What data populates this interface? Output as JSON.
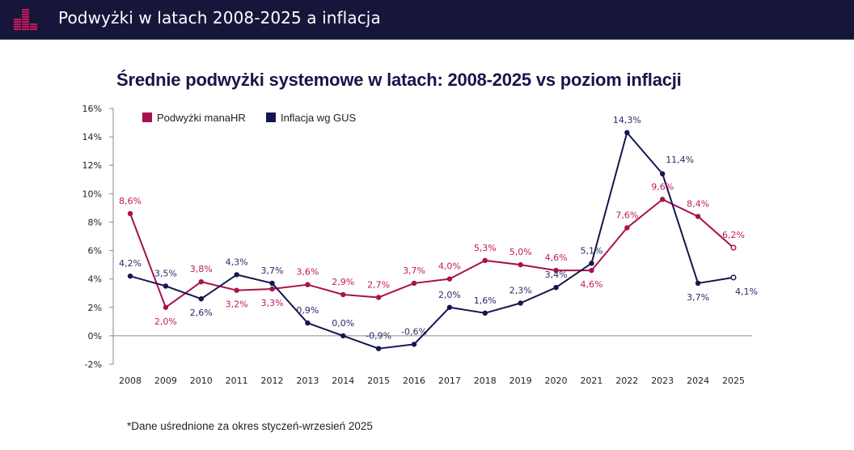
{
  "header": {
    "title": "Podwyżki w latach 2008-2025 a inflacja",
    "logo_icon": "bar-chart-logo-icon",
    "logo_color": "#c2185b",
    "background": "#16163a"
  },
  "footnote": "*Dane uśrednione za okres styczeń-wrzesień 2025",
  "chart_data": {
    "type": "line",
    "title": "Średnie podwyżki systemowe w latach: 2008-2025 vs poziom inflacji",
    "xlabel": "",
    "ylabel": "",
    "x": [
      "2008",
      "2009",
      "2010",
      "2011",
      "2012",
      "2013",
      "2014",
      "2015",
      "2016",
      "2017",
      "2018",
      "2019",
      "2020",
      "2021",
      "2022",
      "2023",
      "2024",
      "2025"
    ],
    "ylim": [
      -2,
      16
    ],
    "yticks": [
      -2,
      0,
      2,
      4,
      6,
      8,
      10,
      12,
      14,
      16
    ],
    "ytick_labels": [
      "-2%",
      "0%",
      "2%",
      "4%",
      "6%",
      "8%",
      "10%",
      "12%",
      "14%",
      "16%"
    ],
    "grid": false,
    "legend_position": "top-left",
    "series": [
      {
        "name": "Podwyżki manaHR",
        "color": "#a8114f",
        "label_color": "#c2185b",
        "values": [
          8.6,
          2.0,
          3.8,
          3.2,
          3.3,
          3.6,
          2.9,
          2.7,
          3.7,
          4.0,
          5.3,
          5.0,
          4.6,
          4.6,
          7.6,
          9.6,
          8.4,
          6.2
        ],
        "labels": [
          "8,6%",
          "2,0%",
          "3,8%",
          "3,2%",
          "3,3%",
          "3,6%",
          "2,9%",
          "2,7%",
          "3,7%",
          "4,0%",
          "5,3%",
          "5,0%",
          "4,6%",
          "4,6%",
          "7,6%",
          "9,6%",
          "8,4%",
          "6,2%"
        ],
        "label_pos": [
          "above",
          "below",
          "above",
          "below",
          "below",
          "above",
          "above",
          "above",
          "above",
          "above",
          "above",
          "above",
          "above",
          "below",
          "above",
          "above",
          "above",
          "above"
        ],
        "last_point_hollow": true
      },
      {
        "name": "Inflacja wg GUS",
        "color": "#14164f",
        "label_color": "#2a2a6a",
        "values": [
          4.2,
          3.5,
          2.6,
          4.3,
          3.7,
          0.9,
          0.0,
          -0.9,
          -0.6,
          2.0,
          1.6,
          2.3,
          3.4,
          5.1,
          14.3,
          11.4,
          3.7,
          4.1
        ],
        "labels": [
          "4,2%",
          "3,5%",
          "2,6%",
          "4,3%",
          "3,7%",
          "0,9%",
          "0,0%",
          "-0,9%",
          "-0,6%",
          "2,0%",
          "1,6%",
          "2,3%",
          "3,4%",
          "5,1%",
          "14,3%",
          "11,4%",
          "3,7%",
          "4,1%"
        ],
        "label_pos": [
          "above",
          "above",
          "below",
          "above",
          "above",
          "above",
          "above",
          "above",
          "above",
          "above",
          "above",
          "above",
          "above",
          "above",
          "above",
          "above-right",
          "below",
          "below-right"
        ],
        "last_point_hollow": true
      }
    ]
  }
}
